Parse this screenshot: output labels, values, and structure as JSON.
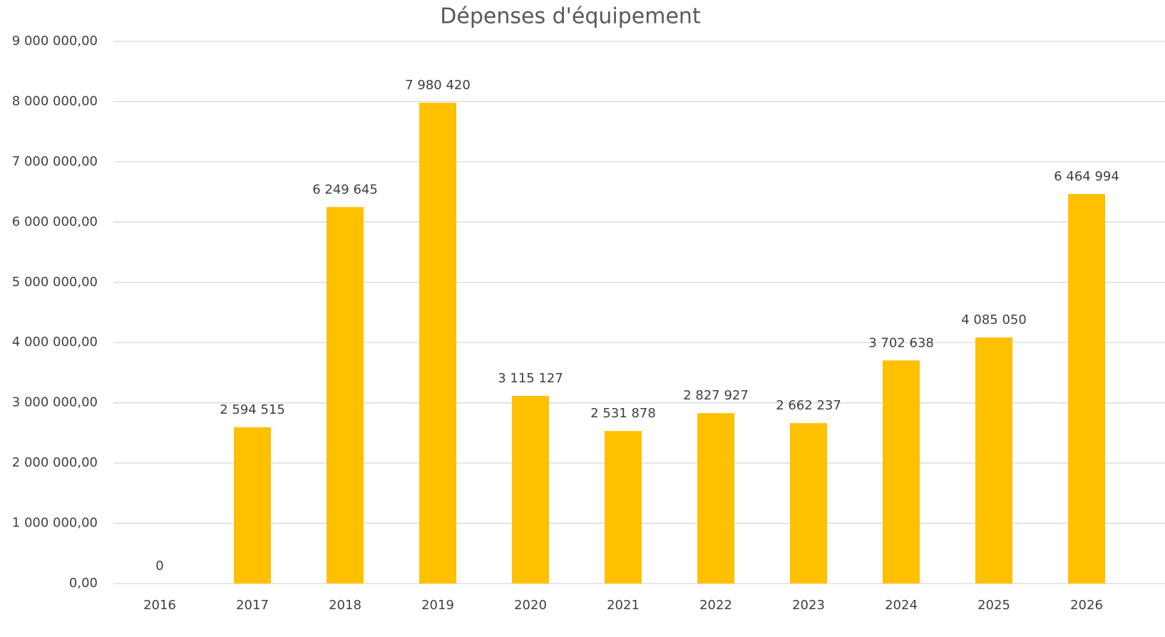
{
  "chart_data": {
    "type": "bar",
    "title": "Dépenses d'équipement",
    "categories": [
      "2016",
      "2017",
      "2018",
      "2019",
      "2020",
      "2021",
      "2022",
      "2023",
      "2024",
      "2025",
      "2026"
    ],
    "values": [
      0,
      2594515,
      6249645,
      7980420,
      3115127,
      2531878,
      2827927,
      2662237,
      3702638,
      4085050,
      6464994
    ],
    "value_labels": [
      "0",
      "2 594 515",
      "6 249 645",
      "7 980 420",
      "3 115 127",
      "2 531 878",
      "2 827 927",
      "2 662 237",
      "3 702 638",
      "4 085 050",
      "6 464 994"
    ],
    "color": "#ffc000",
    "ylim": [
      0,
      9000000
    ],
    "yticks": [
      {
        "value": 0,
        "label": "0,00"
      },
      {
        "value": 1000000,
        "label": "1 000 000,00"
      },
      {
        "value": 2000000,
        "label": "2 000 000,00"
      },
      {
        "value": 3000000,
        "label": "3 000 000,00"
      },
      {
        "value": 4000000,
        "label": "4 000 000,00"
      },
      {
        "value": 5000000,
        "label": "5 000 000,00"
      },
      {
        "value": 6000000,
        "label": "6 000 000,00"
      },
      {
        "value": 7000000,
        "label": "7 000 000,00"
      },
      {
        "value": 8000000,
        "label": "8 000 000,00"
      },
      {
        "value": 9000000,
        "label": "9 000 000,00"
      }
    ],
    "grid": true
  }
}
